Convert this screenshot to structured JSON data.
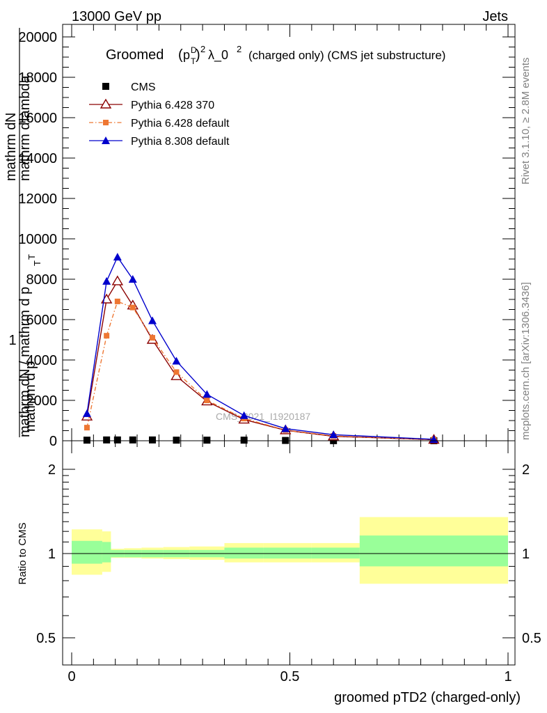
{
  "header": {
    "left": "13000 GeV pp",
    "right": "Jets"
  },
  "side_labels": {
    "rivet": "Rivet 3.1.10, ≥ 2.8M events",
    "mcplots": "mcplots.cern.ch [arXiv:1306.3436]"
  },
  "watermark": "CMS_2021_I1920187",
  "chart_data": [
    {
      "type": "line",
      "title_main": "Groomed",
      "title_tail": "λ_0",
      "title_suffix": "(charged only) (CMS jet substructure)",
      "title_sup": "2",
      "title_sub_sym": "p",
      "title_sub_sup": "D",
      "title_sub_sub": "T",
      "ylabel_top": "1",
      "ylabel_num_1": "mathrm d",
      "ylabel_num_1b": "N",
      "ylabel_num_2": "mathrm d p",
      "ylabel_num_2_sub": "T",
      "ylabel_num_3": "mathrm d",
      "ylabel_num_3b": "lambda",
      "ylabel_den": "mathrm d",
      "ylabel_den_b": "N / mathrm d p",
      "ylabel_den_sub": "T",
      "xlim": [
        0,
        1
      ],
      "ylim": [
        0,
        20000
      ],
      "yticks": [
        0,
        2000,
        4000,
        6000,
        8000,
        10000,
        12000,
        14000,
        16000,
        18000,
        20000
      ],
      "ytick_labels": [
        "0",
        "2000",
        "4000",
        "6000",
        "8000",
        "10000",
        "12000",
        "14000",
        "16000",
        "18000",
        "20000"
      ],
      "legend_position": "top-left",
      "series": [
        {
          "name": "CMS",
          "color": "#000000",
          "marker": "square",
          "x": [
            0.035,
            0.08,
            0.105,
            0.14,
            0.185,
            0.24,
            0.31,
            0.395,
            0.49,
            0.6,
            0.83
          ],
          "y": [
            30,
            40,
            40,
            40,
            40,
            30,
            30,
            30,
            15,
            5,
            2
          ]
        },
        {
          "name": "Pythia 6.428 370",
          "color": "#8b0000",
          "marker": "open-triangle",
          "x": [
            0.035,
            0.08,
            0.105,
            0.14,
            0.185,
            0.24,
            0.31,
            0.395,
            0.49,
            0.6,
            0.83
          ],
          "y": [
            1200,
            7000,
            7900,
            6700,
            5000,
            3200,
            1950,
            1050,
            520,
            220,
            50
          ]
        },
        {
          "name": "Pythia 6.428 default",
          "color": "#ee7733",
          "marker": "small-square",
          "dash": "dashdot",
          "x": [
            0.035,
            0.08,
            0.105,
            0.14,
            0.185,
            0.24,
            0.31,
            0.395,
            0.49,
            0.6,
            0.83
          ],
          "y": [
            650,
            5200,
            6900,
            6600,
            5100,
            3400,
            2000,
            1100,
            530,
            240,
            60
          ]
        },
        {
          "name": "Pythia 8.308 default",
          "color": "#0000cc",
          "marker": "triangle",
          "x": [
            0.035,
            0.08,
            0.105,
            0.14,
            0.185,
            0.24,
            0.31,
            0.395,
            0.49,
            0.6,
            0.83
          ],
          "y": [
            1350,
            7900,
            9100,
            8000,
            5950,
            3950,
            2300,
            1250,
            600,
            300,
            70
          ]
        }
      ]
    },
    {
      "type": "area",
      "ylabel": "Ratio to CMS",
      "xlabel": "groomed pTD2 (charged-only)",
      "xlim": [
        0,
        1
      ],
      "ylim": [
        0.4,
        2.3
      ],
      "log_y": true,
      "yticks": [
        0.5,
        1,
        2
      ],
      "ytick_labels": [
        "0.5",
        "1",
        "2"
      ],
      "xticks": [
        0,
        0.5,
        1
      ],
      "xtick_labels": [
        "0",
        "0.5",
        "1"
      ],
      "bins": [
        0,
        0.07,
        0.09,
        0.12,
        0.16,
        0.21,
        0.27,
        0.35,
        0.44,
        0.55,
        0.66,
        1
      ],
      "band_outer": {
        "color": "#ffff99",
        "lo": [
          0.84,
          0.86,
          0.965,
          0.965,
          0.96,
          0.955,
          0.95,
          0.93,
          0.93,
          0.93,
          0.78
        ],
        "hi": [
          1.22,
          1.2,
          1.04,
          1.045,
          1.05,
          1.055,
          1.06,
          1.09,
          1.09,
          1.09,
          1.35
        ]
      },
      "band_inner": {
        "color": "#99ff99",
        "lo": [
          0.92,
          0.93,
          0.97,
          0.97,
          0.97,
          0.97,
          0.97,
          0.96,
          0.96,
          0.96,
          0.9
        ],
        "hi": [
          1.11,
          1.1,
          1.03,
          1.03,
          1.03,
          1.03,
          1.03,
          1.05,
          1.05,
          1.05,
          1.16
        ]
      },
      "series": []
    }
  ]
}
